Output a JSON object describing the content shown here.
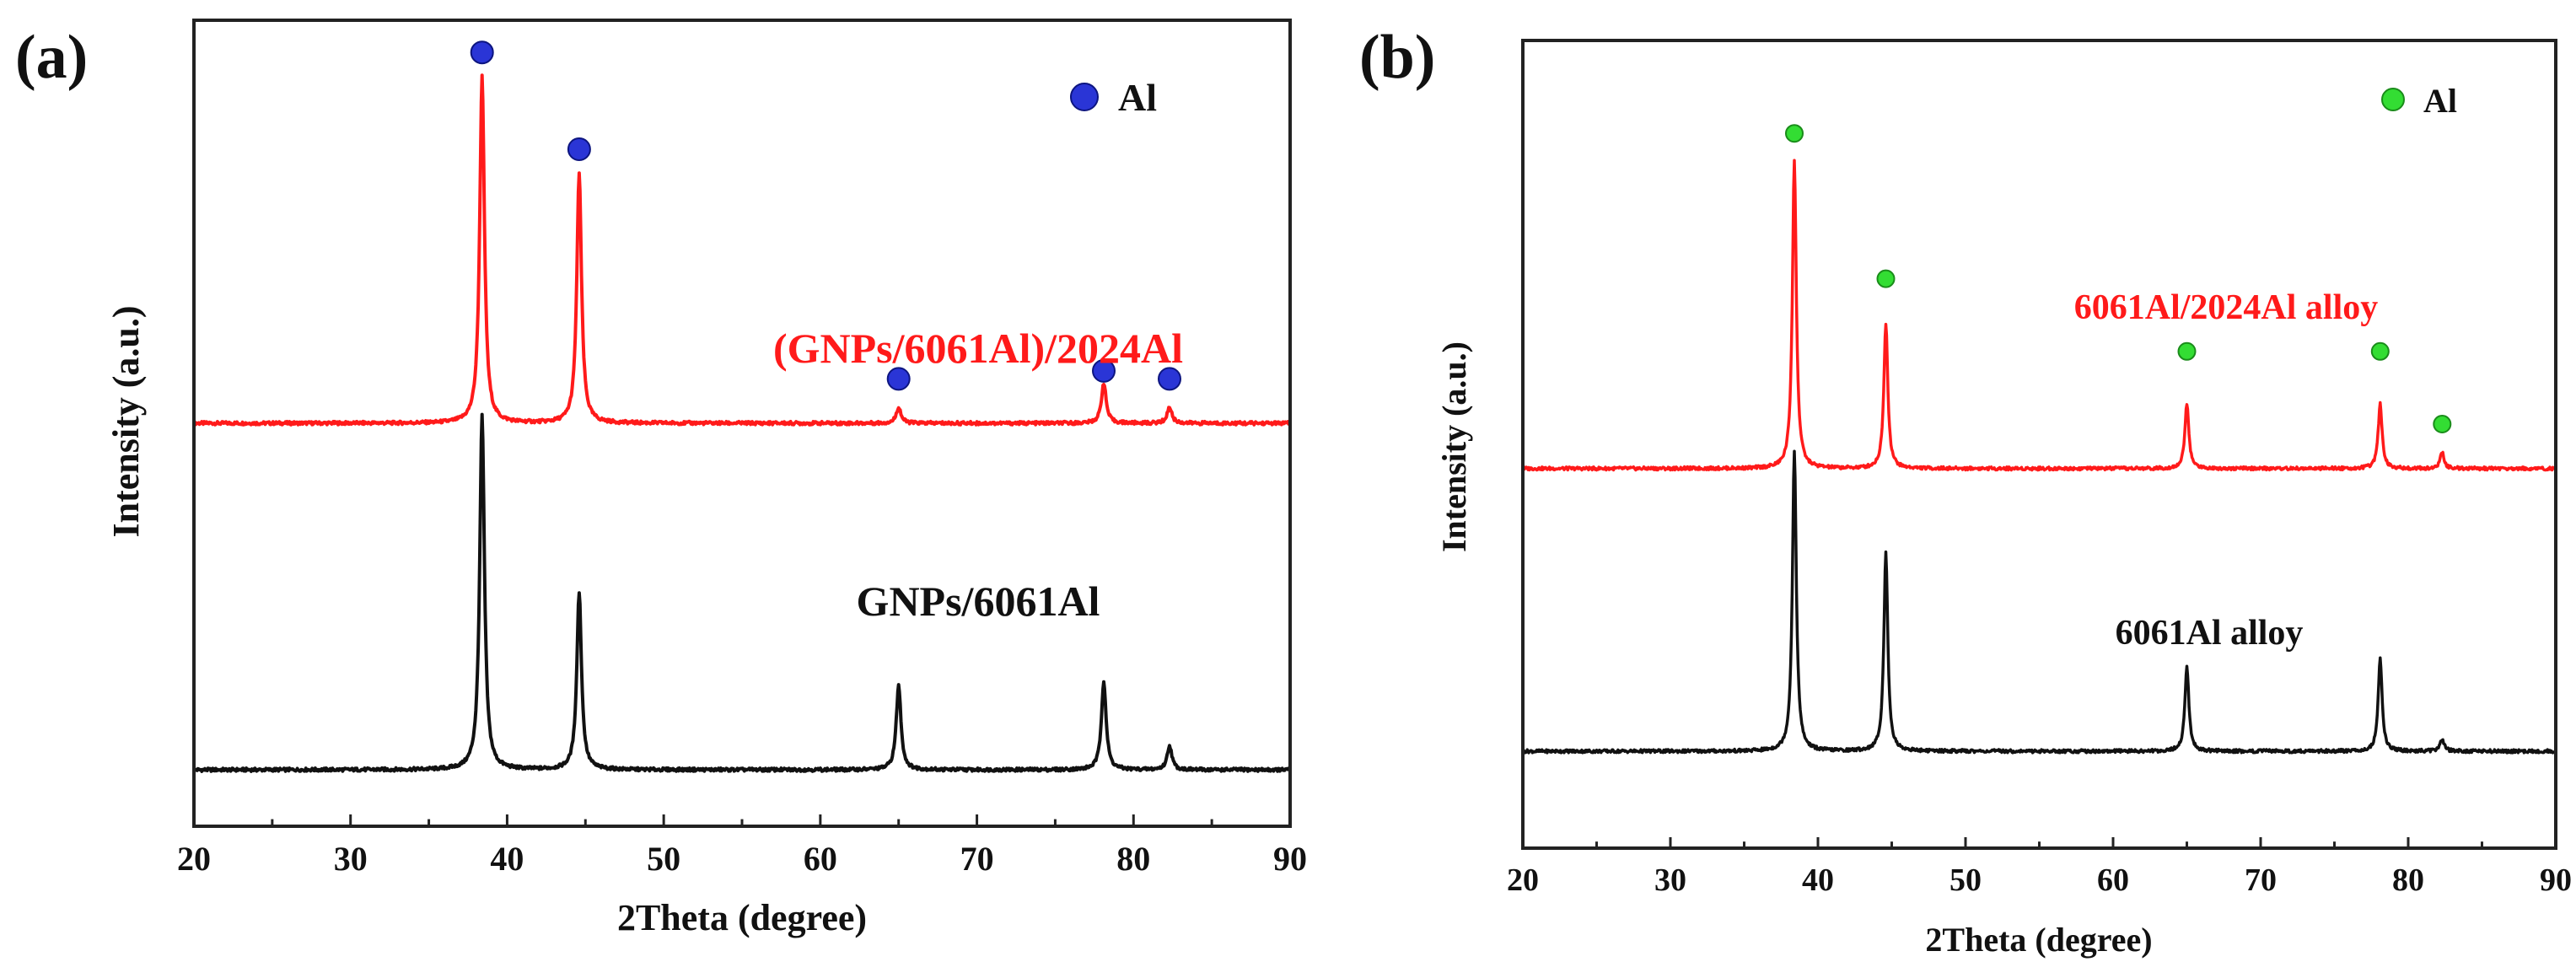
{
  "chart_data": [
    {
      "type": "line",
      "panel_label": "(a)",
      "xlabel": "2Theta (degree)",
      "ylabel": "Intensity (a.u.)",
      "xlim": [
        20,
        90
      ],
      "ylim": [
        0,
        1
      ],
      "xticks": [
        20,
        30,
        40,
        50,
        60,
        70,
        80,
        90
      ],
      "marker_color": "#2a35d6",
      "legend": {
        "label": "Al",
        "color": "#2a35d6",
        "position": "top-right"
      },
      "series": [
        {
          "name": "(GNPs/6061Al)/2024Al",
          "color": "#ff1a1a",
          "baseline": 0.5,
          "peaks": [
            {
              "x": 38.4,
              "h": 0.43
            },
            {
              "x": 44.6,
              "h": 0.31
            },
            {
              "x": 65.0,
              "h": 0.02
            },
            {
              "x": 78.1,
              "h": 0.05
            },
            {
              "x": 82.3,
              "h": 0.02
            }
          ],
          "markers": [
            {
              "x": 38.4,
              "y": 0.96
            },
            {
              "x": 44.6,
              "y": 0.84
            },
            {
              "x": 65.0,
              "y": 0.555
            },
            {
              "x": 78.1,
              "y": 0.565
            },
            {
              "x": 82.3,
              "y": 0.555
            }
          ]
        },
        {
          "name": "GNPs/6061Al",
          "color": "#111111",
          "baseline": 0.07,
          "peaks": [
            {
              "x": 38.4,
              "h": 0.44
            },
            {
              "x": 44.6,
              "h": 0.22
            },
            {
              "x": 65.0,
              "h": 0.105
            },
            {
              "x": 78.1,
              "h": 0.11
            },
            {
              "x": 82.3,
              "h": 0.03
            }
          ],
          "markers": []
        }
      ]
    },
    {
      "type": "line",
      "panel_label": "(b)",
      "xlabel": "2Theta (degree)",
      "ylabel": "Intensity (a.u.)",
      "xlim": [
        20,
        90
      ],
      "ylim": [
        0,
        1
      ],
      "xticks": [
        20,
        30,
        40,
        50,
        60,
        70,
        80,
        90
      ],
      "marker_color": "#33dd33",
      "legend": {
        "label": "Al",
        "color": "#33dd33",
        "position": "top-right"
      },
      "series": [
        {
          "name": "6061Al/2024Al alloy",
          "color": "#ff1a1a",
          "baseline": 0.47,
          "peaks": [
            {
              "x": 38.4,
              "h": 0.38
            },
            {
              "x": 44.6,
              "h": 0.18
            },
            {
              "x": 65.0,
              "h": 0.08
            },
            {
              "x": 78.1,
              "h": 0.08
            },
            {
              "x": 82.3,
              "h": 0.02
            }
          ],
          "markers": [
            {
              "x": 38.4,
              "y": 0.885
            },
            {
              "x": 44.6,
              "y": 0.705
            },
            {
              "x": 65.0,
              "y": 0.615
            },
            {
              "x": 78.1,
              "y": 0.615
            },
            {
              "x": 82.3,
              "y": 0.525
            }
          ]
        },
        {
          "name": "6061Al alloy",
          "color": "#111111",
          "baseline": 0.12,
          "peaks": [
            {
              "x": 38.4,
              "h": 0.37
            },
            {
              "x": 44.6,
              "h": 0.245
            },
            {
              "x": 65.0,
              "h": 0.105
            },
            {
              "x": 78.1,
              "h": 0.115
            },
            {
              "x": 82.3,
              "h": 0.015
            }
          ],
          "markers": []
        }
      ]
    }
  ]
}
